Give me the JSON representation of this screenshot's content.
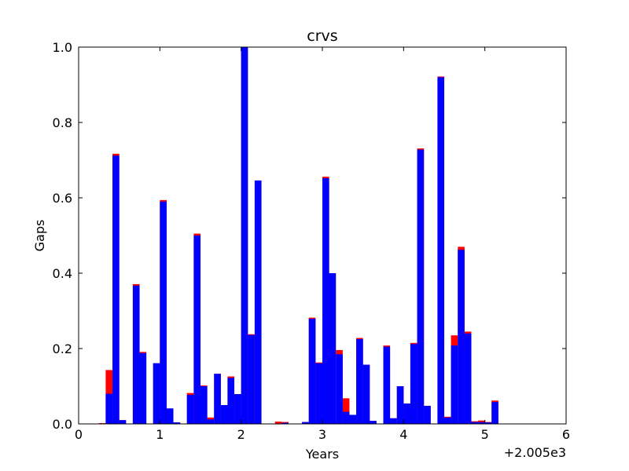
{
  "chart_data": {
    "type": "bar",
    "title": "crvs",
    "xlabel": "Years",
    "ylabel": "Gaps",
    "offset_label": "+2.005e3",
    "xlim": [
      0,
      6
    ],
    "ylim": [
      0,
      1.0
    ],
    "xticks": [
      "0",
      "1",
      "2",
      "3",
      "4",
      "5",
      "6"
    ],
    "yticks": [
      "0.0",
      "0.2",
      "0.4",
      "0.6",
      "0.8",
      "1.0"
    ],
    "grid": false,
    "bin_width": 0.0833,
    "x": [
      0.25,
      0.333,
      0.417,
      0.5,
      0.667,
      0.75,
      0.917,
      1.0,
      1.083,
      1.167,
      1.333,
      1.417,
      1.5,
      1.583,
      1.667,
      1.75,
      1.833,
      1.917,
      2.0,
      2.083,
      2.167,
      2.417,
      2.5,
      2.75,
      2.833,
      2.917,
      3.0,
      3.083,
      3.167,
      3.25,
      3.333,
      3.417,
      3.5,
      3.583,
      3.75,
      3.833,
      3.917,
      4.0,
      4.083,
      4.167,
      4.25,
      4.417,
      4.5,
      4.583,
      4.667,
      4.75,
      4.833,
      4.917,
      5.0,
      5.083,
      5.167
    ],
    "series": [
      {
        "color": "#ff0000",
        "values": [
          0.002,
          0.143,
          0.717,
          0.01,
          0.371,
          0.191,
          0.161,
          0.594,
          0.041,
          0.004,
          0.082,
          0.505,
          0.102,
          0.017,
          0.133,
          0.05,
          0.126,
          0.079,
          1.0,
          0.238,
          0.646,
          0.006,
          0.005,
          0.005,
          0.282,
          0.163,
          0.656,
          0.4,
          0.196,
          0.068,
          0.024,
          0.228,
          0.157,
          0.008,
          0.208,
          0.015,
          0.1,
          0.054,
          0.215,
          0.731,
          0.048,
          0.922,
          0.019,
          0.235,
          0.47,
          0.245,
          0.007,
          0.009,
          0.005,
          0.062,
          0.0
        ]
      },
      {
        "color": "#0000ff",
        "values": [
          0.0,
          0.08,
          0.712,
          0.01,
          0.367,
          0.188,
          0.161,
          0.59,
          0.041,
          0.004,
          0.077,
          0.5,
          0.1,
          0.012,
          0.133,
          0.05,
          0.122,
          0.079,
          1.0,
          0.236,
          0.646,
          0.0,
          0.003,
          0.005,
          0.279,
          0.161,
          0.652,
          0.4,
          0.185,
          0.032,
          0.024,
          0.225,
          0.157,
          0.008,
          0.205,
          0.015,
          0.1,
          0.054,
          0.212,
          0.728,
          0.048,
          0.92,
          0.017,
          0.208,
          0.462,
          0.24,
          0.005,
          0.005,
          0.004,
          0.058,
          0.0
        ]
      }
    ]
  }
}
